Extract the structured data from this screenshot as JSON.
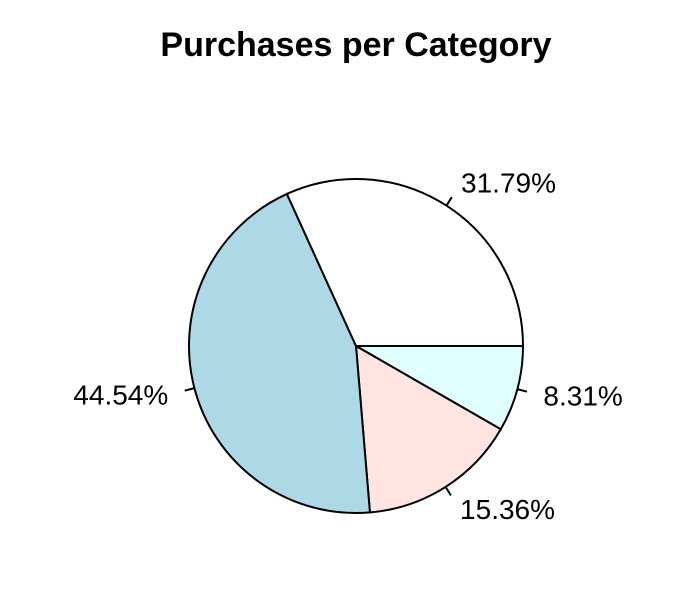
{
  "chart_data": {
    "type": "pie",
    "title": "Purchases per Category",
    "slices": [
      {
        "label": "8.31%",
        "value": 8.31,
        "color": "#e0ffff"
      },
      {
        "label": "15.36%",
        "value": 15.36,
        "color": "#ffe4e1"
      },
      {
        "label": "44.54%",
        "value": 44.54,
        "color": "#add8e6"
      },
      {
        "label": "31.79%",
        "value": 31.79,
        "color": "#ffffff"
      }
    ],
    "start": "east",
    "direction": "clockwise",
    "legend": "none"
  }
}
